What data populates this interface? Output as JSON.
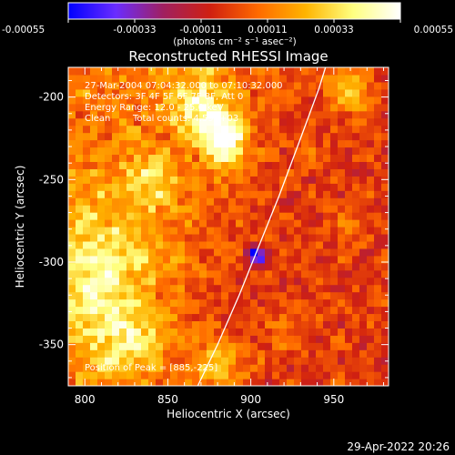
{
  "chart_data": {
    "type": "heatmap",
    "title": "Reconstructed RHESSI Image",
    "xlabel": "Heliocentric X (arcsec)",
    "ylabel": "Heliocentric Y (arcsec)",
    "xlim": [
      790,
      983
    ],
    "ylim": [
      -375,
      -182
    ],
    "x_ticks": [
      800,
      850,
      900,
      950
    ],
    "y_ticks": [
      -200,
      -250,
      -300,
      -350
    ],
    "colorbar": {
      "min": -0.00055,
      "max": 0.00055,
      "ticks": [
        "-0.00055",
        "-0.00033",
        "-0.00011",
        "0.00011",
        "0.00033",
        "0.00055"
      ],
      "units": "(photons cm⁻² s⁻¹ asec⁻²)",
      "colors": [
        "#0000ff",
        "#6a2cff",
        "#a02060",
        "#d02010",
        "#ff6a00",
        "#ffb400",
        "#ffff80",
        "#ffffff"
      ]
    },
    "annotations": {
      "time_range": "27-Mar-2004 07:04:32.000 to 07:10:32.000",
      "detectors": "Detectors: 3F 4F 5F 6F 7F 8F, Att 0",
      "energy": "Energy Range: 12.0 - 25.0 keV",
      "algorithm": "Clean",
      "counts": "Total counts: 4.59E+03",
      "peak": "Position of Peak = [885,-225]"
    },
    "peak": {
      "x": 885,
      "y": -225
    },
    "limb_points": [
      [
        868,
        -375
      ],
      [
        880,
        -350
      ],
      [
        893,
        -320
      ],
      [
        905,
        -290
      ],
      [
        917,
        -260
      ],
      [
        930,
        -225
      ],
      [
        941,
        -195
      ],
      [
        945,
        -182
      ]
    ],
    "sources": [
      {
        "x": 885,
        "y": -225,
        "amp": 0.00055,
        "sx": 8,
        "sy": 12
      },
      {
        "x": 868,
        "y": -205,
        "amp": 0.00035,
        "sx": 12,
        "sy": 14
      },
      {
        "x": 810,
        "y": -310,
        "amp": 0.00033,
        "sx": 22,
        "sy": 35
      },
      {
        "x": 880,
        "y": -362,
        "amp": 0.0003,
        "sx": 12,
        "sy": 10
      },
      {
        "x": 840,
        "y": -250,
        "amp": 0.00022,
        "sx": 10,
        "sy": 12
      },
      {
        "x": 830,
        "y": -350,
        "amp": 0.0002,
        "sx": 15,
        "sy": 12
      },
      {
        "x": 958,
        "y": -195,
        "amp": 0.00028,
        "sx": 10,
        "sy": 10
      },
      {
        "x": 957,
        "y": -280,
        "amp": 0.00015,
        "sx": 6,
        "sy": 6
      },
      {
        "x": 920,
        "y": -340,
        "amp": 0.00014,
        "sx": 6,
        "sy": 8
      },
      {
        "x": 935,
        "y": -235,
        "amp": 0.00012,
        "sx": 6,
        "sy": 6
      },
      {
        "x": 903,
        "y": -295,
        "amp": -0.0005,
        "sx": 4,
        "sy": 4
      }
    ],
    "footer": "29-Apr-2022 20:26"
  }
}
